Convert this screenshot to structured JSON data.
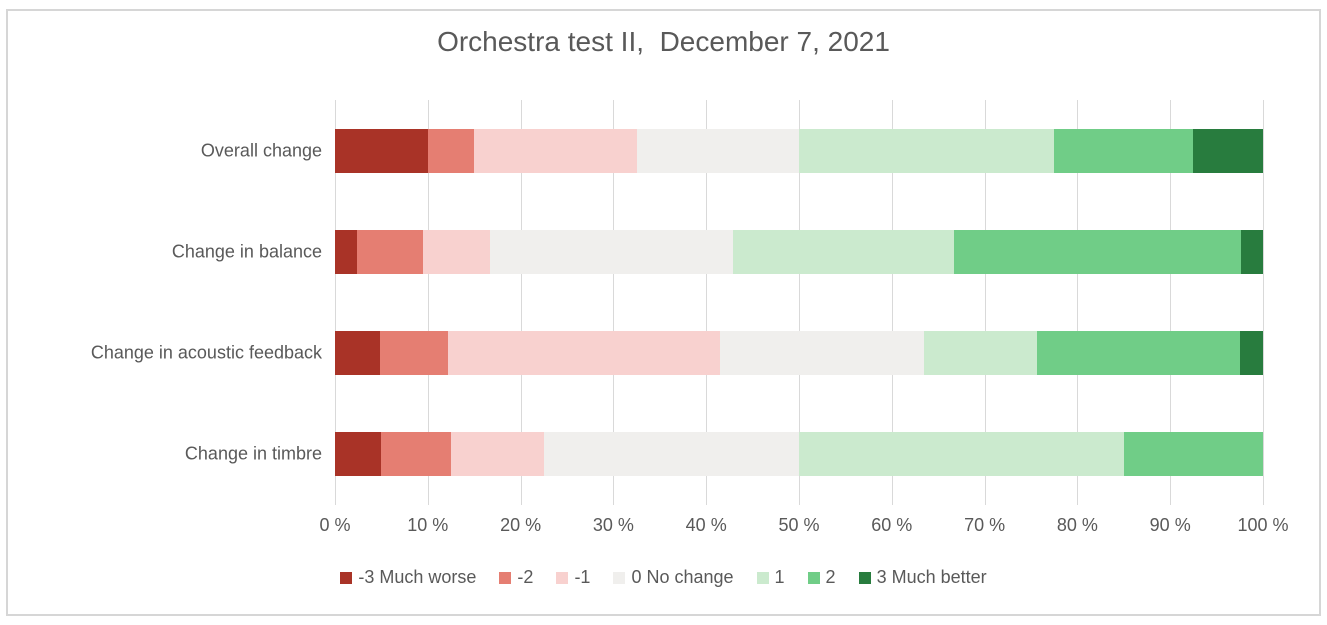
{
  "chart_data": {
    "type": "bar",
    "orientation": "horizontal",
    "stacked": true,
    "title": "Orchestra test II,  December 7, 2021",
    "categories": [
      "Overall change",
      "Change in balance",
      "Change in acoustic feedback",
      "Change in timbre"
    ],
    "series": [
      {
        "name": "-3 Much worse",
        "color": "#A93327",
        "values": [
          10,
          2.38,
          4.88,
          5
        ]
      },
      {
        "name": "-2",
        "color": "#E57E72",
        "values": [
          5,
          7.14,
          7.32,
          7.5
        ]
      },
      {
        "name": "-1",
        "color": "#F8D1CF",
        "values": [
          17.5,
          7.14,
          29.27,
          10
        ]
      },
      {
        "name": "0 No change",
        "color": "#F0EFED",
        "values": [
          17.5,
          26.19,
          21.95,
          27.5
        ]
      },
      {
        "name": "1",
        "color": "#CBEACE",
        "values": [
          27.5,
          23.81,
          12.2,
          35
        ]
      },
      {
        "name": "2",
        "color": "#70CD87",
        "values": [
          15,
          30.95,
          21.95,
          15
        ]
      },
      {
        "name": "3 Much better",
        "color": "#287C3E",
        "values": [
          7.5,
          2.38,
          2.44,
          0
        ]
      }
    ],
    "x_tick_labels": [
      "0 %",
      "10 %",
      "20 %",
      "30 %",
      "40 %",
      "50 %",
      "60 %",
      "70 %",
      "80 %",
      "90 %",
      "100 %"
    ],
    "x_tick_values": [
      0,
      10,
      20,
      30,
      40,
      50,
      60,
      70,
      80,
      90,
      100
    ],
    "xlim": [
      0,
      100
    ],
    "grid": true,
    "legend_position": "bottom",
    "gridline_color": "#D9D9D9",
    "text_color": "#595959",
    "border_color": "#D6D6D6"
  }
}
